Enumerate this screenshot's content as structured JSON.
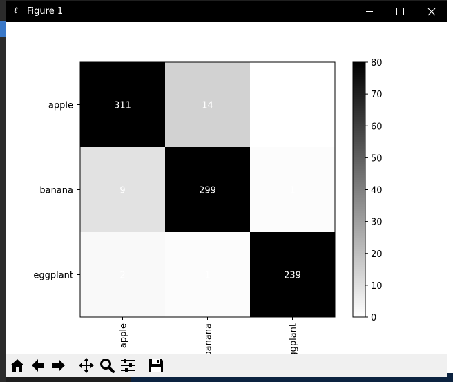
{
  "window": {
    "title": "Figure 1"
  },
  "chart_data": {
    "type": "heatmap",
    "title": "",
    "xlabel": "",
    "ylabel": "",
    "rows": [
      "apple",
      "banana",
      "eggplant"
    ],
    "columns": [
      "apple",
      "banana",
      "eggplant"
    ],
    "values": [
      [
        311,
        14,
        0
      ],
      [
        9,
        299,
        1
      ],
      [
        2,
        1,
        239
      ]
    ],
    "cell_labels": [
      [
        "311",
        "14",
        ""
      ],
      [
        "9",
        "299",
        "1"
      ],
      [
        "2",
        "1",
        "239"
      ]
    ],
    "colormap": "gray_r",
    "vmin": 0,
    "vmax": 80,
    "colorbar_ticks": [
      0,
      10,
      20,
      30,
      40,
      50,
      60,
      70,
      80
    ],
    "label_color": "#ffffff"
  },
  "toolbar": {
    "buttons": [
      "home-icon",
      "back-icon",
      "forward-icon",
      "pan-icon",
      "zoom-icon",
      "subplots-icon",
      "save-icon"
    ]
  }
}
